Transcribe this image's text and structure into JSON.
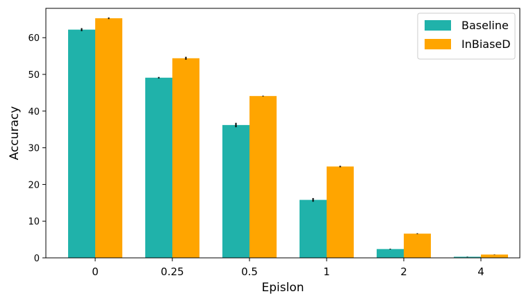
{
  "chart_data": {
    "type": "bar",
    "title": "",
    "xlabel": "Epislon",
    "ylabel": "Accuracy",
    "categories": [
      "0",
      "0.25",
      "0.5",
      "1",
      "2",
      "4"
    ],
    "ylim": [
      0,
      68
    ],
    "yticks": [
      0,
      10,
      20,
      30,
      40,
      50,
      60
    ],
    "grid": false,
    "legend_position": "top-right",
    "series": [
      {
        "name": "Baseline",
        "color": "#20b2aa",
        "values": [
          62.2,
          49.1,
          36.2,
          15.8,
          2.4,
          0.3
        ],
        "errors": [
          0.4,
          0.2,
          0.6,
          0.5,
          0.1,
          0.05
        ]
      },
      {
        "name": "InBiaseD",
        "color": "#ffa500",
        "values": [
          65.3,
          54.4,
          44.1,
          24.9,
          6.6,
          0.9
        ],
        "errors": [
          0.2,
          0.4,
          0.1,
          0.2,
          0.1,
          0.05
        ]
      }
    ]
  }
}
